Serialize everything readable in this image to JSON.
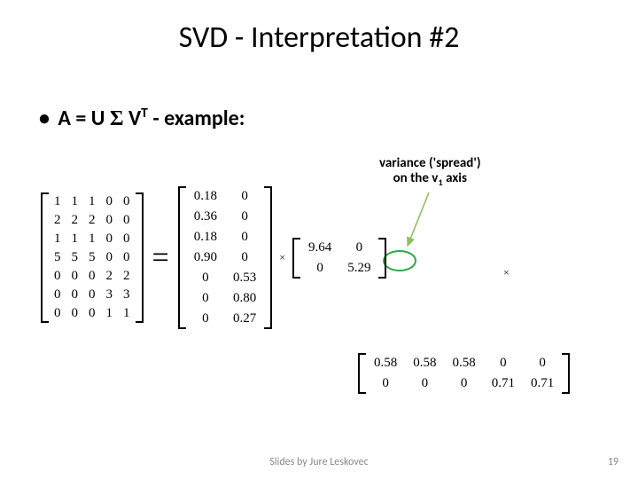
{
  "title": "SVD - Interpretation #2",
  "bullet": {
    "prefix": "A = U ",
    "sigma": "Σ",
    "mid": " V",
    "sup": "T",
    "suffix": " - example:"
  },
  "variance_label": {
    "line1": "variance ('spread')",
    "line2a": "on the v",
    "line2sub": "1",
    "line2b": " axis"
  },
  "equals": "=",
  "times": "×",
  "matrixA": [
    [
      "1",
      "1",
      "1",
      "0",
      "0"
    ],
    [
      "2",
      "2",
      "2",
      "0",
      "0"
    ],
    [
      "1",
      "1",
      "1",
      "0",
      "0"
    ],
    [
      "5",
      "5",
      "5",
      "0",
      "0"
    ],
    [
      "0",
      "0",
      "0",
      "2",
      "2"
    ],
    [
      "0",
      "0",
      "0",
      "3",
      "3"
    ],
    [
      "0",
      "0",
      "0",
      "1",
      "1"
    ]
  ],
  "matrixU": [
    [
      "0.18",
      "0"
    ],
    [
      "0.36",
      "0"
    ],
    [
      "0.18",
      "0"
    ],
    [
      "0.90",
      "0"
    ],
    [
      "0",
      "0.53"
    ],
    [
      "0",
      "0.80"
    ],
    [
      "0",
      "0.27"
    ]
  ],
  "matrixS": [
    [
      "9.64",
      "0"
    ],
    [
      "0",
      "5.29"
    ]
  ],
  "matrixVT": [
    [
      "0.58",
      "0.58",
      "0.58",
      "0",
      "0"
    ],
    [
      "0",
      "0",
      "0",
      "0.71",
      "0.71"
    ]
  ],
  "footer": "Slides by Jure Leskovec",
  "page": "19",
  "colors": {
    "circle": "#2aa843",
    "arrow": "#8fbf63"
  }
}
